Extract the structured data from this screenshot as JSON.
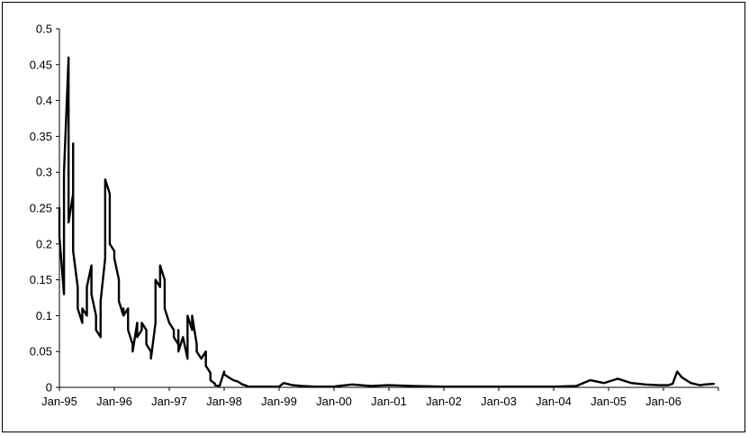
{
  "chart_data": {
    "type": "line",
    "title": "",
    "xlabel": "",
    "ylabel": "",
    "ylim": [
      0,
      0.5
    ],
    "y_ticks": [
      "0",
      "0.05",
      "0.1",
      "0.15",
      "0.2",
      "0.25",
      "0.3",
      "0.35",
      "0.4",
      "0.45",
      "0.5"
    ],
    "x_ticks": [
      "Jan-95",
      "Jan-96",
      "Jan-97",
      "Jan-98",
      "Jan-99",
      "Jan-00",
      "Jan-01",
      "Jan-02",
      "Jan-03",
      "Jan-04",
      "Jan-05",
      "Jan-06"
    ],
    "grid": false,
    "legend": "none",
    "line_color": "#000000",
    "series": [
      {
        "x": [
          "1995-01",
          "1995-01",
          "1995-02",
          "1995-02",
          "1995-03",
          "1995-03",
          "1995-03",
          "1995-03",
          "1995-03",
          "1995-04",
          "1995-04",
          "1995-04",
          "1995-04",
          "1995-05",
          "1995-05",
          "1995-05",
          "1995-06",
          "1995-06",
          "1995-07",
          "1995-07",
          "1995-08",
          "1995-08",
          "1995-09",
          "1995-09",
          "1995-09",
          "1995-10",
          "1995-10",
          "1995-11",
          "1995-11",
          "1995-12",
          "1995-12",
          "1996-01",
          "1996-01",
          "1996-02",
          "1996-02",
          "1996-03",
          "1996-03",
          "1996-03",
          "1996-04",
          "1996-04",
          "1996-05",
          "1996-05",
          "1996-06",
          "1996-06",
          "1996-07",
          "1996-07",
          "1996-08",
          "1996-08",
          "1996-09",
          "1996-09",
          "1996-10",
          "1996-10",
          "1996-11",
          "1996-11",
          "1996-12",
          "1996-12",
          "1997-01",
          "1997-02",
          "1997-02",
          "1997-03",
          "1997-03",
          "1997-03",
          "1997-04",
          "1997-05",
          "1997-05",
          "1997-06",
          "1997-06",
          "1997-07",
          "1997-07",
          "1997-08",
          "1997-08",
          "1997-09",
          "1997-09",
          "1997-10",
          "1997-10",
          "1997-11",
          "1997-11",
          "1997-12",
          "1998-01",
          "1998-01",
          "1998-02",
          "1998-03",
          "1998-04",
          "1998-05",
          "1998-06",
          "1998-06",
          "1998-07",
          "1998-08",
          "1998-09",
          "1998-10",
          "1998-11",
          "1998-12",
          "1999-01",
          "1999-02",
          "1999-04",
          "1999-06",
          "1999-09",
          "2000-01",
          "2000-02",
          "2000-05",
          "2000-09",
          "2001-01",
          "2001-06",
          "2002-01",
          "2002-06",
          "2003-01",
          "2004-01",
          "2004-06",
          "2004-09",
          "2004-12",
          "2005-01",
          "2005-03",
          "2005-06",
          "2005-09",
          "2005-12",
          "2006-02",
          "2006-03",
          "2006-04",
          "2006-05",
          "2006-07",
          "2006-09",
          "2006-10",
          "2006-12"
        ],
        "values": [
          0.25,
          0.21,
          0.13,
          0.3,
          0.46,
          0.4,
          0.32,
          0.24,
          0.23,
          0.27,
          0.34,
          0.28,
          0.19,
          0.14,
          0.11,
          0.11,
          0.09,
          0.11,
          0.1,
          0.14,
          0.17,
          0.13,
          0.1,
          0.09,
          0.08,
          0.07,
          0.12,
          0.18,
          0.29,
          0.27,
          0.2,
          0.19,
          0.18,
          0.15,
          0.12,
          0.1,
          0.11,
          0.1,
          0.11,
          0.08,
          0.06,
          0.05,
          0.09,
          0.07,
          0.08,
          0.09,
          0.08,
          0.06,
          0.05,
          0.04,
          0.09,
          0.15,
          0.14,
          0.17,
          0.15,
          0.11,
          0.09,
          0.08,
          0.07,
          0.06,
          0.08,
          0.05,
          0.07,
          0.04,
          0.1,
          0.08,
          0.1,
          0.06,
          0.05,
          0.04,
          0.04,
          0.05,
          0.03,
          0.02,
          0.01,
          0.005,
          0.003,
          0.002,
          0.022,
          0.018,
          0.014,
          0.01,
          0.008,
          0.004,
          0.002,
          0.001,
          0.001,
          0.001,
          0.001,
          0.001,
          0.001,
          0.001,
          0.001,
          0.006,
          0.003,
          0.002,
          0.001,
          0.001,
          0.002,
          0.004,
          0.002,
          0.003,
          0.002,
          0.001,
          0.001,
          0.001,
          0.001,
          0.002,
          0.01,
          0.006,
          0.008,
          0.012,
          0.006,
          0.004,
          0.003,
          0.003,
          0.005,
          0.022,
          0.014,
          0.006,
          0.003,
          0.004,
          0.005
        ]
      }
    ]
  }
}
